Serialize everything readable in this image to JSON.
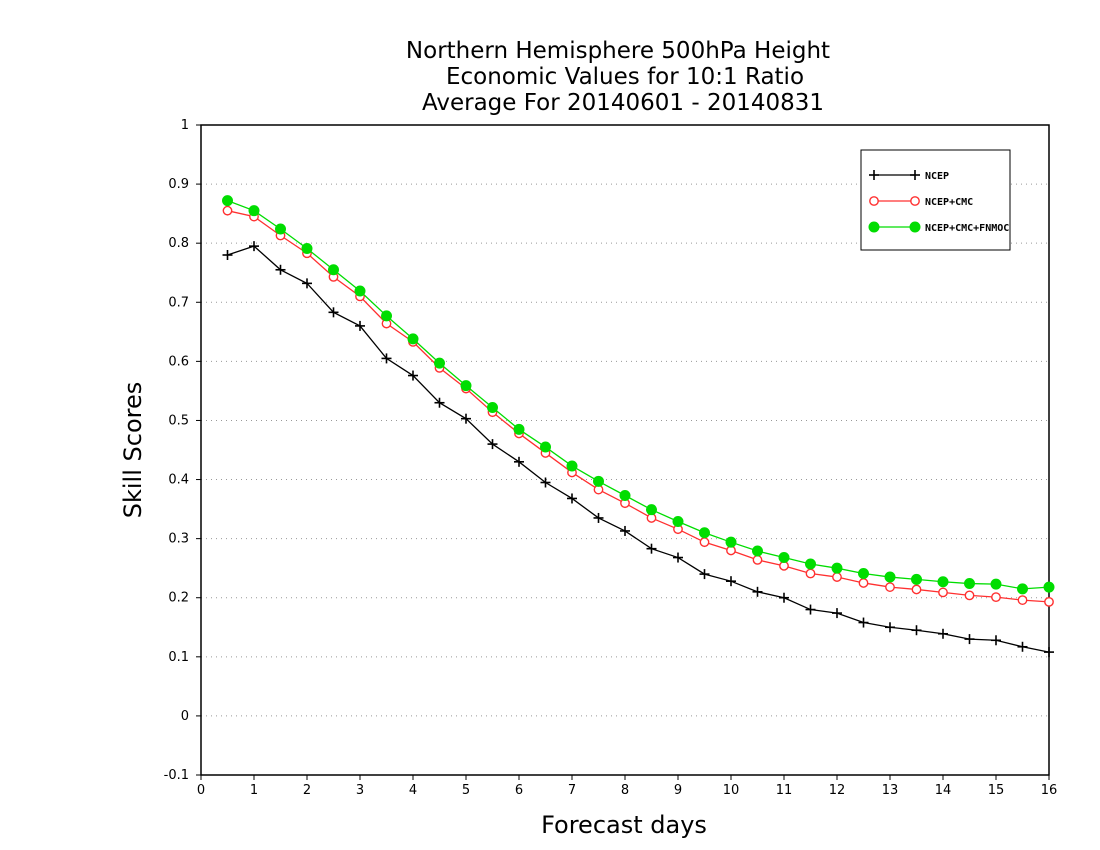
{
  "chart_data": {
    "type": "line",
    "title": [
      "Northern Hemisphere 500hPa Height",
      "Economic Values for 10:1 Ratio",
      "Average For 20140601 - 20140831"
    ],
    "xlabel": "Forecast days",
    "ylabel": "Skill Scores",
    "xlim": [
      0,
      16
    ],
    "ylim": [
      -0.1,
      1
    ],
    "xticks": [
      "0",
      "1",
      "2",
      "3",
      "4",
      "5",
      "6",
      "7",
      "8",
      "9",
      "10",
      "11",
      "12",
      "13",
      "14",
      "15",
      "16"
    ],
    "yticks": [
      "-0.1",
      "0",
      "0.1",
      "0.2",
      "0.3",
      "0.4",
      "0.5",
      "0.6",
      "0.7",
      "0.8",
      "0.9",
      "1"
    ],
    "grid": "horizontal dotted",
    "legend_position": "top-right",
    "x": [
      0.5,
      1,
      1.5,
      2,
      2.5,
      3,
      3.5,
      4,
      4.5,
      5,
      5.5,
      6,
      6.5,
      7,
      7.5,
      8,
      8.5,
      9,
      9.5,
      10,
      10.5,
      11,
      11.5,
      12,
      12.5,
      13,
      13.5,
      14,
      14.5,
      15,
      15.5,
      16
    ],
    "series": [
      {
        "name": "NCEP",
        "color": "#000000",
        "marker": "plus",
        "values": [
          0.78,
          0.795,
          0.755,
          0.732,
          0.683,
          0.66,
          0.605,
          0.576,
          0.53,
          0.503,
          0.46,
          0.43,
          0.395,
          0.368,
          0.335,
          0.313,
          0.283,
          0.268,
          0.24,
          0.228,
          0.21,
          0.2,
          0.18,
          0.174,
          0.158,
          0.15,
          0.145,
          0.139,
          0.13,
          0.128,
          0.117,
          0.108
        ]
      },
      {
        "name": "NCEP+CMC",
        "color": "#ff3030",
        "marker": "open-circle",
        "values": [
          0.855,
          0.845,
          0.813,
          0.783,
          0.743,
          0.71,
          0.664,
          0.633,
          0.589,
          0.554,
          0.514,
          0.478,
          0.445,
          0.412,
          0.383,
          0.36,
          0.335,
          0.316,
          0.294,
          0.28,
          0.264,
          0.254,
          0.241,
          0.235,
          0.225,
          0.218,
          0.214,
          0.209,
          0.204,
          0.201,
          0.196,
          0.193
        ]
      },
      {
        "name": "NCEP+CMC+FNMOC",
        "color": "#00dd00",
        "marker": "filled-circle",
        "values": [
          0.872,
          0.855,
          0.824,
          0.791,
          0.755,
          0.719,
          0.677,
          0.638,
          0.597,
          0.559,
          0.522,
          0.485,
          0.455,
          0.423,
          0.397,
          0.373,
          0.349,
          0.329,
          0.31,
          0.294,
          0.279,
          0.268,
          0.257,
          0.25,
          0.241,
          0.235,
          0.231,
          0.227,
          0.224,
          0.223,
          0.215,
          0.218
        ]
      }
    ]
  }
}
